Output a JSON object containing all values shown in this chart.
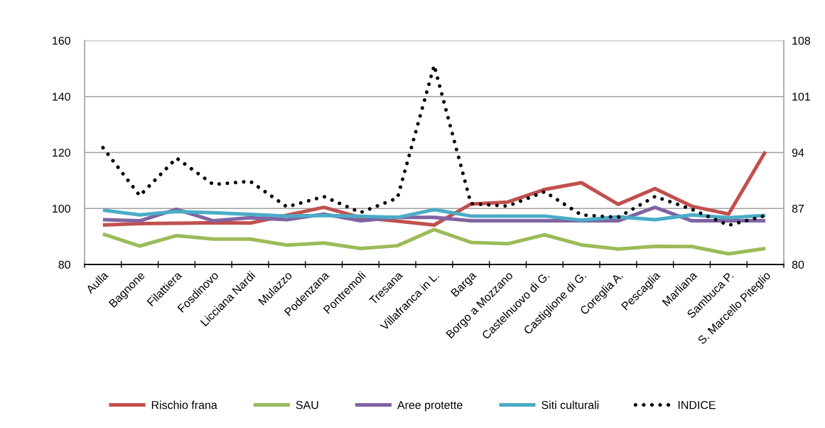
{
  "chart_data": {
    "type": "line",
    "categories": [
      "Aulla",
      "Bagnone",
      "Filattiera",
      "Fosdinovo",
      "Licciana Nardi",
      "Mulazzo",
      "Podenzana",
      "Pontremoli",
      "Tresana",
      "Villafranca in L.",
      "Barga",
      "Borgo a Mozzano",
      "Castelnuovo di G.",
      "Castiglione di G.",
      "Coreglia A.",
      "Pescaglia",
      "Marliana",
      "Sambuca P.",
      "S. Marcello Piteglio"
    ],
    "ylim": [
      80,
      160
    ],
    "yticks": [
      80,
      100,
      120,
      140,
      160
    ],
    "y2lim": [
      80,
      108
    ],
    "y2ticks": [
      80,
      87,
      94,
      101,
      108
    ],
    "grid": "y",
    "legend": "bottom",
    "line_style": "solid",
    "series": [
      {
        "name": "Rischio frana",
        "color": "#c0504d",
        "values": [
          94.1,
          94.6,
          94.7,
          94.9,
          94.8,
          97.6,
          100.4,
          96.8,
          95.5,
          94.1,
          101.6,
          102.3,
          106.8,
          109.2,
          101.5,
          107.1,
          100.8,
          98.0,
          120.3
        ]
      },
      {
        "name": "SAU",
        "color": "#9bbb59",
        "values": [
          90.9,
          86.6,
          90.3,
          89.1,
          89.1,
          86.9,
          87.7,
          85.7,
          86.7,
          92.5,
          87.9,
          87.4,
          90.6,
          87.0,
          85.5,
          86.5,
          86.4,
          83.8,
          85.7
        ]
      },
      {
        "name": "Aree protette",
        "color": "#8064a2",
        "values": [
          96.0,
          95.6,
          99.7,
          95.6,
          96.7,
          96.0,
          98.0,
          95.6,
          96.8,
          96.8,
          95.6,
          95.6,
          95.6,
          95.6,
          95.6,
          100.4,
          95.6,
          95.6,
          95.6
        ]
      },
      {
        "name": "Siti culturali",
        "color": "#4bacc6",
        "values": [
          99.4,
          97.7,
          98.9,
          98.5,
          97.9,
          97.3,
          97.5,
          97.2,
          96.8,
          99.6,
          97.3,
          97.3,
          97.3,
          95.8,
          97.0,
          96.0,
          97.7,
          96.7,
          97.5
        ]
      },
      {
        "name": "INDICE",
        "color": "#000000",
        "axis": "y2",
        "line_style": "dotted",
        "values": [
          94.6,
          88.6,
          93.3,
          90.0,
          90.4,
          87.2,
          88.5,
          86.5,
          88.3,
          104.9,
          87.6,
          87.3,
          89.1,
          86.2,
          85.9,
          88.5,
          86.9,
          84.9,
          86.1
        ]
      }
    ]
  }
}
